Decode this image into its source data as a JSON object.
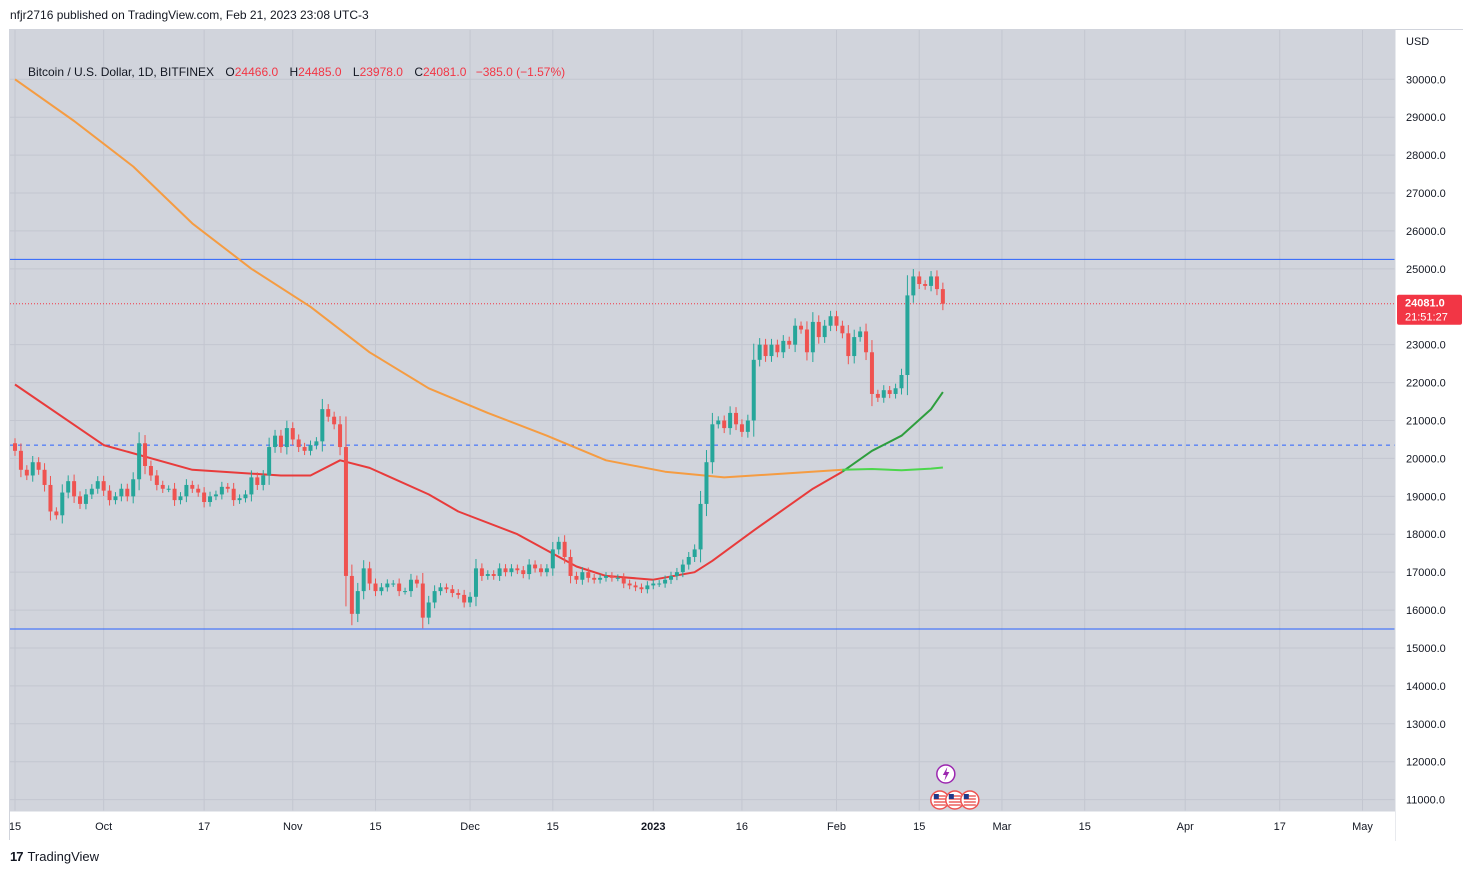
{
  "header": {
    "published_by": "nfjr2716 published on TradingView.com, Feb 21, 2023 23:08 UTC-3"
  },
  "legend": {
    "symbol": "Bitcoin / U.S. Dollar, 1D, BITFINEX",
    "open_label": "O",
    "open": "24466.0",
    "high_label": "H",
    "high": "24485.0",
    "low_label": "L",
    "low": "23978.0",
    "close_label": "C",
    "close": "24081.0",
    "change": "−385.0 (−1.57%)"
  },
  "footer": {
    "brand": "TradingView",
    "logo": "17"
  },
  "colors": {
    "up": "#26a69a",
    "down": "#ef5350",
    "ma_fast": "#e83b3b",
    "ma_slow": "#f59c42",
    "ma_green_dark": "#2e9e3e",
    "ma_green_light": "#4cd64c",
    "hline": "#2962ff",
    "price_label_bg": "#f23645",
    "background": "#d1d4dc",
    "grid": "#c3c6d0"
  },
  "chart_data": {
    "type": "candlestick",
    "title": "Bitcoin / U.S. Dollar, 1D, BITFINEX",
    "currency": "USD",
    "ylim": [
      10700,
      31300
    ],
    "y_ticks": [
      "30000.0",
      "29000.0",
      "28000.0",
      "27000.0",
      "26000.0",
      "25000.0",
      "23000.0",
      "22000.0",
      "21000.0",
      "20000.0",
      "19000.0",
      "18000.0",
      "17000.0",
      "16000.0",
      "15000.0",
      "14000.0",
      "13000.0",
      "12000.0",
      "11000.0"
    ],
    "x_ticks": [
      {
        "label": "15",
        "day": 0
      },
      {
        "label": "Oct",
        "day": 15
      },
      {
        "label": "17",
        "day": 32
      },
      {
        "label": "Nov",
        "day": 47
      },
      {
        "label": "15",
        "day": 61
      },
      {
        "label": "Dec",
        "day": 77
      },
      {
        "label": "15",
        "day": 91
      },
      {
        "label": "2023",
        "day": 108
      },
      {
        "label": "16",
        "day": 123
      },
      {
        "label": "Feb",
        "day": 139
      },
      {
        "label": "15",
        "day": 153
      },
      {
        "label": "Mar",
        "day": 167
      },
      {
        "label": "15",
        "day": 181
      },
      {
        "label": "Apr",
        "day": 198
      },
      {
        "label": "17",
        "day": 214
      },
      {
        "label": "May",
        "day": 228
      }
    ],
    "candles_close": [
      20200,
      19700,
      19550,
      19900,
      19700,
      19300,
      18600,
      18500,
      19100,
      19400,
      19000,
      18800,
      19050,
      19200,
      19400,
      19150,
      18900,
      19000,
      19200,
      19000,
      19450,
      20400,
      19800,
      19550,
      19300,
      19200,
      19200,
      18900,
      19000,
      19300,
      19200,
      19100,
      18850,
      19000,
      19050,
      19250,
      19200,
      18900,
      18950,
      19050,
      19500,
      19300,
      19550,
      20300,
      20600,
      20300,
      20800,
      20500,
      20300,
      20200,
      20350,
      20450,
      21300,
      21100,
      20900,
      20300,
      16900,
      15900,
      16500,
      17100,
      16700,
      16500,
      16600,
      16700,
      16700,
      16500,
      16500,
      16800,
      16700,
      15800,
      16200,
      16500,
      16600,
      16550,
      16450,
      16400,
      16200,
      16350,
      17100,
      16900,
      16950,
      16900,
      17100,
      17000,
      17100,
      17050,
      16950,
      17200,
      17100,
      17000,
      17100,
      17600,
      17800,
      17400,
      16900,
      16800,
      17000,
      16850,
      16800,
      16850,
      16900,
      16850,
      16850,
      16700,
      16650,
      16600,
      16550,
      16650,
      16700,
      16700,
      16800,
      16900,
      17000,
      17200,
      17400,
      17600,
      18800,
      19900,
      20900,
      21000,
      20800,
      21200,
      20900,
      20700,
      21000,
      22600,
      23000,
      22700,
      23000,
      22800,
      23100,
      23000,
      23500,
      23400,
      22800,
      23600,
      23200,
      23500,
      23750,
      23500,
      23300,
      22700,
      23200,
      23350,
      22800,
      21700,
      21600,
      21800,
      21700,
      21850,
      22200,
      24300,
      24800,
      24600,
      24550,
      24800,
      24466,
      24081
    ],
    "series": [
      {
        "name": "EMA fast (red)",
        "points": [
          [
            0,
            21950
          ],
          [
            15,
            20350
          ],
          [
            30,
            19700
          ],
          [
            45,
            19550
          ],
          [
            50,
            19550
          ],
          [
            55,
            19950
          ],
          [
            60,
            19750
          ],
          [
            70,
            19050
          ],
          [
            75,
            18600
          ],
          [
            85,
            18000
          ],
          [
            95,
            17150
          ],
          [
            100,
            16900
          ],
          [
            108,
            16800
          ],
          [
            115,
            17000
          ],
          [
            118,
            17300
          ],
          [
            125,
            18100
          ],
          [
            135,
            19200
          ],
          [
            140,
            19650
          ]
        ]
      },
      {
        "name": "EMA slow (orange)",
        "points": [
          [
            0,
            30000
          ],
          [
            10,
            28900
          ],
          [
            20,
            27700
          ],
          [
            30,
            26200
          ],
          [
            40,
            25000
          ],
          [
            50,
            24000
          ],
          [
            60,
            22800
          ],
          [
            70,
            21850
          ],
          [
            80,
            21200
          ],
          [
            90,
            20600
          ],
          [
            100,
            19950
          ],
          [
            110,
            19650
          ],
          [
            120,
            19500
          ],
          [
            130,
            19600
          ],
          [
            140,
            19700
          ]
        ]
      },
      {
        "name": "EMA (dark green)",
        "points": [
          [
            140,
            19650
          ],
          [
            145,
            20200
          ],
          [
            150,
            20600
          ],
          [
            155,
            21300
          ],
          [
            157,
            21750
          ]
        ]
      },
      {
        "name": "EMA (light green)",
        "points": [
          [
            140,
            19700
          ],
          [
            145,
            19720
          ],
          [
            150,
            19690
          ],
          [
            155,
            19730
          ],
          [
            157,
            19760
          ]
        ]
      }
    ],
    "horizontal_lines": [
      {
        "price": 25250,
        "style": "solid"
      },
      {
        "price": 24081,
        "style": "dotted"
      },
      {
        "price": 20350,
        "style": "dashed"
      },
      {
        "price": 15500,
        "style": "solid"
      }
    ],
    "last_price": {
      "value": "24081.0",
      "countdown": "21:51:27"
    },
    "events": [
      "lightning-event-icon",
      "us-flag-event-icon",
      "us-flag-event-icon",
      "us-flag-event-icon"
    ]
  }
}
